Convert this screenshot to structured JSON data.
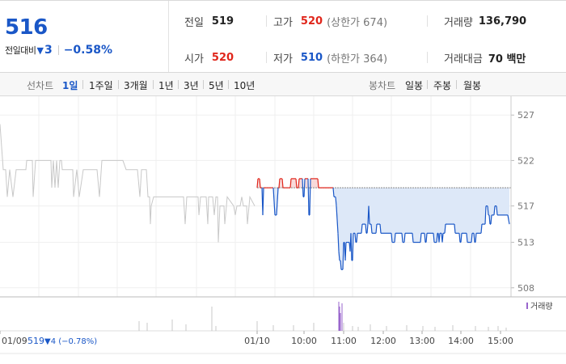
{
  "summary": {
    "price": "516",
    "change_label": "전일대비",
    "change_arrow": "▼",
    "change_value": "3",
    "change_pct": "−0.58%",
    "prev_close_label": "전일",
    "prev_close": "519",
    "high_label": "고가",
    "high": "520",
    "upper_limit": "(상한가 674)",
    "volume_label": "거래량",
    "volume": "136,790",
    "open_label": "시가",
    "open": "520",
    "low_label": "저가",
    "low": "510",
    "lower_limit": "(하한가 364)",
    "trade_value_label": "거래대금",
    "trade_value": "70 백만"
  },
  "toolbar": {
    "line_chart_label": "선차트",
    "line_periods": [
      "1일",
      "1주일",
      "3개월",
      "1년",
      "3년",
      "5년",
      "10년"
    ],
    "active_period": "1일",
    "candle_chart_label": "봉차트",
    "candle_periods": [
      "일봉",
      "주봉",
      "월봉"
    ]
  },
  "colors": {
    "up": "#e0261b",
    "down": "#1a57c7",
    "prev_day": "#c8c8c8",
    "fill_down": "#dde8f8",
    "fill_up": "#f8dada",
    "volume_bar": "#9966cc"
  },
  "chart_data": {
    "type": "line",
    "yaxis_ticks": [
      "527",
      "522",
      "517",
      "513",
      "508"
    ],
    "ylim": [
      508,
      527
    ],
    "xaxis_ticks": [
      "01/09",
      "01/10",
      "10:00",
      "11:00",
      "12:00",
      "13:00",
      "14:00",
      "15:00"
    ],
    "prev_day_footer": "519",
    "prev_day_change": "▼4 (−0.78%)",
    "volume_legend": "거래량",
    "baseline": 519,
    "prev_day_series": [
      {
        "x": 0,
        "y": 526
      },
      {
        "x": 4,
        "y": 521
      },
      {
        "x": 7,
        "y": 521
      },
      {
        "x": 9,
        "y": 518
      },
      {
        "x": 12,
        "y": 521
      },
      {
        "x": 16,
        "y": 518
      },
      {
        "x": 20,
        "y": 521
      },
      {
        "x": 32,
        "y": 521
      },
      {
        "x": 33,
        "y": 522
      },
      {
        "x": 40,
        "y": 522
      },
      {
        "x": 41,
        "y": 518
      },
      {
        "x": 44,
        "y": 522
      },
      {
        "x": 63,
        "y": 522
      },
      {
        "x": 64,
        "y": 519
      },
      {
        "x": 66,
        "y": 522
      },
      {
        "x": 68,
        "y": 519
      },
      {
        "x": 70,
        "y": 522
      },
      {
        "x": 72,
        "y": 519
      },
      {
        "x": 74,
        "y": 522
      },
      {
        "x": 76,
        "y": 522
      },
      {
        "x": 77,
        "y": 521
      },
      {
        "x": 90,
        "y": 521
      },
      {
        "x": 91,
        "y": 518
      },
      {
        "x": 95,
        "y": 521
      },
      {
        "x": 98,
        "y": 518
      },
      {
        "x": 103,
        "y": 521
      },
      {
        "x": 113,
        "y": 521
      },
      {
        "x": 120,
        "y": 521
      },
      {
        "x": 123,
        "y": 518
      },
      {
        "x": 126,
        "y": 522
      },
      {
        "x": 146,
        "y": 522
      },
      {
        "x": 152,
        "y": 522
      },
      {
        "x": 156,
        "y": 521
      },
      {
        "x": 170,
        "y": 521
      },
      {
        "x": 173,
        "y": 518
      },
      {
        "x": 175,
        "y": 521
      },
      {
        "x": 181,
        "y": 521
      },
      {
        "x": 183,
        "y": 518
      },
      {
        "x": 185,
        "y": 518
      },
      {
        "x": 186,
        "y": 515
      },
      {
        "x": 187,
        "y": 517
      },
      {
        "x": 190,
        "y": 518
      },
      {
        "x": 215,
        "y": 518
      },
      {
        "x": 227,
        "y": 518
      },
      {
        "x": 229,
        "y": 515
      },
      {
        "x": 231,
        "y": 518
      },
      {
        "x": 245,
        "y": 518
      },
      {
        "x": 246,
        "y": 516
      },
      {
        "x": 248,
        "y": 518
      },
      {
        "x": 255,
        "y": 518
      },
      {
        "x": 257,
        "y": 515
      },
      {
        "x": 258,
        "y": 518
      },
      {
        "x": 263,
        "y": 518
      },
      {
        "x": 265,
        "y": 516
      },
      {
        "x": 267,
        "y": 518
      },
      {
        "x": 269,
        "y": 518
      },
      {
        "x": 270,
        "y": 513
      },
      {
        "x": 272,
        "y": 517
      },
      {
        "x": 277,
        "y": 517
      },
      {
        "x": 278,
        "y": 515
      },
      {
        "x": 281,
        "y": 518
      },
      {
        "x": 289,
        "y": 517
      },
      {
        "x": 291,
        "y": 516
      },
      {
        "x": 293,
        "y": 517
      },
      {
        "x": 297,
        "y": 517
      },
      {
        "x": 299,
        "y": 518
      },
      {
        "x": 301,
        "y": 517
      },
      {
        "x": 305,
        "y": 517
      },
      {
        "x": 306,
        "y": 515
      },
      {
        "x": 309,
        "y": 518
      },
      {
        "x": 315,
        "y": 517
      }
    ],
    "today_series": [
      {
        "x": 318,
        "y": 519
      },
      {
        "x": 319,
        "y": 520
      },
      {
        "x": 321,
        "y": 520
      },
      {
        "x": 322,
        "y": 519
      },
      {
        "x": 324,
        "y": 519
      },
      {
        "x": 325,
        "y": 516
      },
      {
        "x": 326,
        "y": 519
      },
      {
        "x": 338,
        "y": 519
      },
      {
        "x": 340,
        "y": 516
      },
      {
        "x": 342,
        "y": 516
      },
      {
        "x": 344,
        "y": 519
      },
      {
        "x": 345,
        "y": 519
      },
      {
        "x": 346,
        "y": 520
      },
      {
        "x": 349,
        "y": 520
      },
      {
        "x": 350,
        "y": 519
      },
      {
        "x": 359,
        "y": 519
      },
      {
        "x": 360,
        "y": 520
      },
      {
        "x": 366,
        "y": 520
      },
      {
        "x": 367,
        "y": 519
      },
      {
        "x": 369,
        "y": 519
      },
      {
        "x": 370,
        "y": 520
      },
      {
        "x": 374,
        "y": 520
      },
      {
        "x": 375,
        "y": 518
      },
      {
        "x": 376,
        "y": 518
      },
      {
        "x": 377,
        "y": 520
      },
      {
        "x": 381,
        "y": 520
      },
      {
        "x": 382,
        "y": 516
      },
      {
        "x": 383,
        "y": 516
      },
      {
        "x": 384,
        "y": 520
      },
      {
        "x": 393,
        "y": 520
      },
      {
        "x": 394,
        "y": 519
      },
      {
        "x": 412,
        "y": 519
      },
      {
        "x": 413,
        "y": 518
      },
      {
        "x": 415,
        "y": 518
      },
      {
        "x": 416,
        "y": 517
      },
      {
        "x": 418,
        "y": 514
      },
      {
        "x": 419,
        "y": 512
      },
      {
        "x": 420,
        "y": 511
      },
      {
        "x": 421,
        "y": 511
      },
      {
        "x": 422,
        "y": 510
      },
      {
        "x": 423,
        "y": 510
      },
      {
        "x": 424,
        "y": 510
      },
      {
        "x": 425,
        "y": 513
      },
      {
        "x": 426,
        "y": 513
      },
      {
        "x": 427,
        "y": 511
      },
      {
        "x": 428,
        "y": 513
      },
      {
        "x": 432,
        "y": 513
      },
      {
        "x": 433,
        "y": 512
      },
      {
        "x": 434,
        "y": 514
      },
      {
        "x": 435,
        "y": 511
      },
      {
        "x": 436,
        "y": 511
      },
      {
        "x": 437,
        "y": 514
      },
      {
        "x": 439,
        "y": 514
      },
      {
        "x": 440,
        "y": 513
      },
      {
        "x": 441,
        "y": 513
      },
      {
        "x": 442,
        "y": 514
      },
      {
        "x": 447,
        "y": 514
      },
      {
        "x": 448,
        "y": 515
      },
      {
        "x": 452,
        "y": 515
      },
      {
        "x": 453,
        "y": 514
      },
      {
        "x": 454,
        "y": 514
      },
      {
        "x": 455,
        "y": 515
      },
      {
        "x": 456,
        "y": 517
      },
      {
        "x": 457,
        "y": 515
      },
      {
        "x": 459,
        "y": 515
      },
      {
        "x": 460,
        "y": 514
      },
      {
        "x": 465,
        "y": 514
      },
      {
        "x": 466,
        "y": 515
      },
      {
        "x": 470,
        "y": 515
      },
      {
        "x": 471,
        "y": 514
      },
      {
        "x": 484,
        "y": 514
      },
      {
        "x": 485,
        "y": 513
      },
      {
        "x": 488,
        "y": 513
      },
      {
        "x": 489,
        "y": 514
      },
      {
        "x": 497,
        "y": 514
      },
      {
        "x": 498,
        "y": 513
      },
      {
        "x": 500,
        "y": 513
      },
      {
        "x": 501,
        "y": 514
      },
      {
        "x": 510,
        "y": 514
      },
      {
        "x": 511,
        "y": 513
      },
      {
        "x": 520,
        "y": 513
      },
      {
        "x": 521,
        "y": 514
      },
      {
        "x": 525,
        "y": 514
      },
      {
        "x": 526,
        "y": 513
      },
      {
        "x": 527,
        "y": 513
      },
      {
        "x": 528,
        "y": 514
      },
      {
        "x": 536,
        "y": 514
      },
      {
        "x": 537,
        "y": 513
      },
      {
        "x": 540,
        "y": 513
      },
      {
        "x": 541,
        "y": 514
      },
      {
        "x": 542,
        "y": 514
      },
      {
        "x": 543,
        "y": 513
      },
      {
        "x": 544,
        "y": 514
      },
      {
        "x": 546,
        "y": 514
      },
      {
        "x": 547,
        "y": 513
      },
      {
        "x": 548,
        "y": 514
      },
      {
        "x": 550,
        "y": 514
      },
      {
        "x": 551,
        "y": 515
      },
      {
        "x": 562,
        "y": 515
      },
      {
        "x": 563,
        "y": 514
      },
      {
        "x": 566,
        "y": 514
      },
      {
        "x": 567,
        "y": 514
      },
      {
        "x": 568,
        "y": 514
      },
      {
        "x": 569,
        "y": 513
      },
      {
        "x": 570,
        "y": 513
      },
      {
        "x": 571,
        "y": 514
      },
      {
        "x": 577,
        "y": 514
      },
      {
        "x": 578,
        "y": 513
      },
      {
        "x": 583,
        "y": 513
      },
      {
        "x": 584,
        "y": 514
      },
      {
        "x": 586,
        "y": 514
      },
      {
        "x": 587,
        "y": 513
      },
      {
        "x": 588,
        "y": 513
      },
      {
        "x": 589,
        "y": 514
      },
      {
        "x": 595,
        "y": 514
      },
      {
        "x": 596,
        "y": 515
      },
      {
        "x": 600,
        "y": 515
      },
      {
        "x": 601,
        "y": 517
      },
      {
        "x": 603,
        "y": 517
      },
      {
        "x": 604,
        "y": 516
      },
      {
        "x": 605,
        "y": 516
      },
      {
        "x": 606,
        "y": 515
      },
      {
        "x": 607,
        "y": 515
      },
      {
        "x": 608,
        "y": 516
      },
      {
        "x": 611,
        "y": 516
      },
      {
        "x": 612,
        "y": 517
      },
      {
        "x": 613,
        "y": 517
      },
      {
        "x": 614,
        "y": 517
      },
      {
        "x": 615,
        "y": 516
      },
      {
        "x": 628,
        "y": 516
      },
      {
        "x": 630,
        "y": 515
      }
    ]
  }
}
